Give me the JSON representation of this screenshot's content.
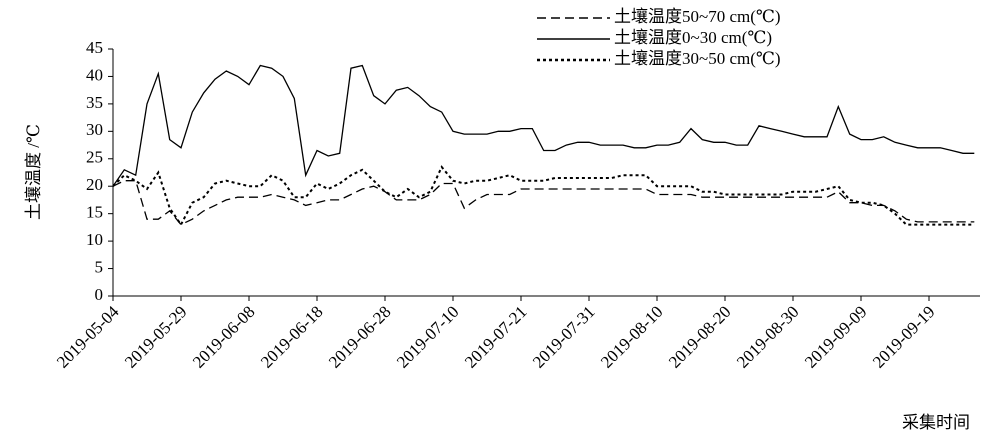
{
  "chart_data": {
    "type": "line",
    "y_label": "土壤温度 /℃",
    "x_label": "采集时间",
    "categories": [
      "2019-05-04",
      null,
      null,
      null,
      null,
      null,
      "2019-05-29",
      null,
      null,
      null,
      null,
      null,
      "2019-06-08",
      null,
      null,
      null,
      null,
      null,
      "2019-06-18",
      null,
      null,
      null,
      null,
      null,
      "2019-06-28",
      null,
      null,
      null,
      null,
      null,
      "2019-07-10",
      null,
      null,
      null,
      null,
      null,
      "2019-07-21",
      null,
      null,
      null,
      null,
      null,
      "2019-07-31",
      null,
      null,
      null,
      null,
      null,
      "2019-08-10",
      null,
      null,
      null,
      null,
      null,
      "2019-08-20",
      null,
      null,
      null,
      null,
      null,
      "2019-08-30",
      null,
      null,
      null,
      null,
      null,
      "2019-09-09",
      null,
      null,
      null,
      null,
      null,
      "2019-09-19",
      null,
      null,
      null,
      null
    ],
    "series": [
      {
        "name": "土壤温度50~70 cm(℃)",
        "color": "#000000",
        "style": "dashed",
        "values": [
          20,
          21,
          21,
          14,
          14,
          15.5,
          13,
          14,
          15.5,
          16.5,
          17.5,
          18,
          18,
          18,
          18.5,
          18,
          17.5,
          16.5,
          17,
          17.5,
          17.5,
          18.5,
          19.5,
          20,
          19,
          17.5,
          17.5,
          17.5,
          18.5,
          20.5,
          20.5,
          16,
          17.5,
          18.5,
          18.5,
          18.5,
          19.5,
          19.5,
          19.5,
          19.5,
          19.5,
          19.5,
          19.5,
          19.5,
          19.5,
          19.5,
          19.5,
          19.5,
          18.5,
          18.5,
          18.5,
          18.5,
          18,
          18,
          18,
          18,
          18,
          18,
          18,
          18,
          18,
          18,
          18,
          18,
          19,
          17,
          17,
          16.5,
          16.5,
          15.5,
          14,
          13.5,
          13.5,
          13.5,
          13.5,
          13.5,
          13.5
        ]
      },
      {
        "name": "土壤温度0~30 cm(℃)",
        "color": "#000000",
        "style": "solid",
        "values": [
          20,
          23,
          22,
          35,
          40.5,
          28.5,
          27,
          33.5,
          37,
          39.5,
          41,
          40,
          38.5,
          42,
          41.5,
          40,
          36,
          22,
          26.5,
          25.5,
          26,
          41.5,
          42,
          36.5,
          35,
          37.5,
          38,
          36.5,
          34.5,
          33.5,
          30,
          29.5,
          29.5,
          29.5,
          30,
          30,
          30.5,
          30.5,
          26.5,
          26.5,
          27.5,
          28,
          28,
          27.5,
          27.5,
          27.5,
          27,
          27,
          27.5,
          27.5,
          28,
          30.5,
          28.5,
          28,
          28,
          27.5,
          27.5,
          31,
          30.5,
          30,
          29.5,
          29,
          29,
          29,
          34.5,
          29.5,
          28.5,
          28.5,
          29,
          28,
          27.5,
          27,
          27,
          27,
          26.5,
          26,
          26
        ]
      },
      {
        "name": "土壤温度30~50 cm(℃)",
        "color": "#000000",
        "style": "dotted",
        "values": [
          20,
          22,
          21,
          19.5,
          22.5,
          16,
          13,
          17,
          18,
          20.5,
          21,
          20.5,
          20,
          20,
          22,
          21,
          18,
          18,
          20.5,
          19.5,
          20.5,
          22,
          23,
          21,
          19,
          18,
          19.5,
          18,
          19,
          23.5,
          21,
          20.5,
          21,
          21,
          21.5,
          22,
          21,
          21,
          21,
          21.5,
          21.5,
          21.5,
          21.5,
          21.5,
          21.5,
          22,
          22,
          22,
          20,
          20,
          20,
          20,
          19,
          19,
          18.5,
          18.5,
          18.5,
          18.5,
          18.5,
          18.5,
          19,
          19,
          19,
          19.5,
          20,
          17.5,
          17,
          17,
          16.5,
          15,
          13,
          13,
          13,
          13,
          13,
          13,
          13
        ]
      }
    ],
    "ylim": [
      0,
      45
    ],
    "yticks": [
      0,
      5,
      10,
      15,
      20,
      25,
      30,
      35,
      40,
      45
    ],
    "grid": false,
    "legend": "top-right"
  }
}
